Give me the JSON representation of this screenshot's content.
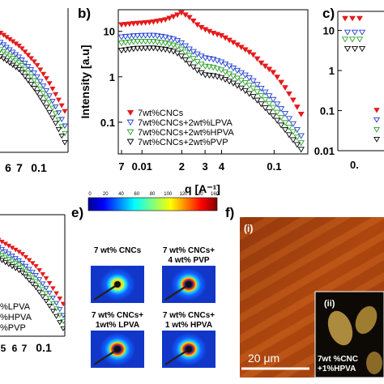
{
  "panel_labels": {
    "b": "b)",
    "c": "c)",
    "e": "e)",
    "f": "f)"
  },
  "chart_data": [
    {
      "panel": "a (cropped)",
      "type": "scatter",
      "x_ticks": [
        "6",
        "7",
        "0.1"
      ],
      "legend_fragments": [
        "%LPVA",
        "%HPVA",
        "%PVP"
      ],
      "lower_x_ticks": [
        "5",
        "6",
        "7",
        "0.1"
      ],
      "xscale": "log",
      "yscale": "log",
      "series": [
        {
          "color": "#e41a1c",
          "marker": "triangle-down-filled",
          "x": [
            0.01,
            0.03,
            0.05,
            0.07,
            0.09,
            0.11,
            0.13
          ],
          "y": [
            30,
            16,
            8,
            4,
            2,
            1,
            0.55
          ]
        },
        {
          "color": "#1f3fd1",
          "marker": "triangle-down-open",
          "x": [
            0.01,
            0.03,
            0.05,
            0.07,
            0.09,
            0.11,
            0.13
          ],
          "y": [
            22,
            11,
            5,
            2.5,
            1.2,
            0.6,
            0.3
          ]
        },
        {
          "color": "#2ca02c",
          "marker": "triangle-down-open",
          "x": [
            0.01,
            0.03,
            0.05,
            0.07,
            0.09,
            0.11,
            0.13
          ],
          "y": [
            18,
            8,
            4,
            1.8,
            0.9,
            0.45,
            0.22
          ]
        },
        {
          "color": "#000000",
          "marker": "triangle-down-open",
          "x": [
            0.01,
            0.03,
            0.05,
            0.07,
            0.09,
            0.11,
            0.13
          ],
          "y": [
            14,
            6,
            3,
            1.3,
            0.6,
            0.3,
            0.15
          ]
        }
      ]
    },
    {
      "panel": "b",
      "type": "scatter",
      "xlabel": "q [A⁻¹]",
      "ylabel": "Intensity [a.u]",
      "xscale": "log",
      "yscale": "log",
      "xlim": [
        0.007,
        0.17
      ],
      "ylim": [
        0.02,
        30
      ],
      "x_ticks": [
        {
          "v": 0.007,
          "t": "7"
        },
        {
          "v": 0.01,
          "t": "0.01"
        },
        {
          "v": 0.02,
          "t": "2"
        },
        {
          "v": 0.03,
          "t": "3"
        },
        {
          "v": 0.04,
          "t": "4"
        },
        {
          "v": 0.1,
          "t": "0.1"
        }
      ],
      "y_ticks": [
        {
          "v": 10,
          "t": "10"
        },
        {
          "v": 1,
          "t": "1"
        },
        {
          "v": 0.1,
          "t": "0.1"
        }
      ],
      "legend_position": "bottom-left",
      "series": [
        {
          "name": "7wt%CNCs",
          "color": "#e41a1c",
          "marker": "triangle-down-filled",
          "x": [
            0.007,
            0.009,
            0.012,
            0.015,
            0.018,
            0.02,
            0.023,
            0.027,
            0.03,
            0.035,
            0.04,
            0.05,
            0.06,
            0.07,
            0.08,
            0.1,
            0.12,
            0.14,
            0.16
          ],
          "y": [
            14,
            15,
            16,
            18,
            22,
            26,
            20,
            13,
            11,
            9,
            8,
            5.5,
            4,
            3,
            2,
            1.2,
            0.6,
            0.3,
            0.15
          ]
        },
        {
          "name": "7wt%CNCs+2wt%LPVA",
          "color": "#1f3fd1",
          "marker": "triangle-down-open",
          "x": [
            0.007,
            0.009,
            0.012,
            0.015,
            0.018,
            0.02,
            0.023,
            0.027,
            0.03,
            0.035,
            0.04,
            0.05,
            0.06,
            0.07,
            0.08,
            0.1,
            0.12,
            0.14,
            0.16
          ],
          "y": [
            7.5,
            8,
            8.2,
            7.5,
            6.5,
            5.5,
            4,
            3,
            2.6,
            2.4,
            2.1,
            1.5,
            1.1,
            0.8,
            0.55,
            0.3,
            0.16,
            0.09,
            0.05
          ]
        },
        {
          "name": "7wt%CNCs+2wt%HPVA",
          "color": "#2ca02c",
          "marker": "triangle-down-open",
          "x": [
            0.007,
            0.009,
            0.012,
            0.015,
            0.018,
            0.02,
            0.023,
            0.027,
            0.03,
            0.035,
            0.04,
            0.05,
            0.06,
            0.07,
            0.08,
            0.1,
            0.12,
            0.14,
            0.16
          ],
          "y": [
            5.5,
            6,
            6,
            5.5,
            4.8,
            4,
            2.9,
            2,
            1.7,
            1.6,
            1.4,
            1,
            0.75,
            0.55,
            0.38,
            0.2,
            0.1,
            0.06,
            0.035
          ]
        },
        {
          "name": "7wt%CNCs+2wt%PVP",
          "color": "#000000",
          "marker": "triangle-down-open",
          "x": [
            0.007,
            0.009,
            0.012,
            0.015,
            0.018,
            0.02,
            0.023,
            0.027,
            0.03,
            0.035,
            0.04,
            0.05,
            0.06,
            0.07,
            0.08,
            0.1,
            0.12,
            0.14,
            0.16
          ],
          "y": [
            3.8,
            4.2,
            4.3,
            4,
            3.5,
            2.8,
            1.9,
            1.3,
            1.1,
            1.05,
            0.95,
            0.7,
            0.5,
            0.36,
            0.25,
            0.13,
            0.07,
            0.04,
            0.025
          ]
        }
      ]
    },
    {
      "panel": "c (cropped)",
      "type": "scatter",
      "y_ticks": [
        "10",
        "1",
        "0.1",
        "0.01"
      ],
      "x_ticks": [
        "0."
      ],
      "xscale": "log",
      "yscale": "log",
      "series": [
        {
          "color": "#e41a1c",
          "marker": "triangle-down-filled",
          "x": [
            0.007,
            0.0075,
            0.008
          ],
          "y": [
            20,
            20,
            20
          ]
        },
        {
          "color": "#1f3fd1",
          "marker": "triangle-down-open",
          "x": [
            0.007,
            0.0075,
            0.008
          ],
          "y": [
            9,
            9,
            9
          ]
        },
        {
          "color": "#2ca02c",
          "marker": "triangle-down-open",
          "x": [
            0.007,
            0.0075,
            0.008
          ],
          "y": [
            6,
            6,
            6
          ]
        },
        {
          "color": "#000000",
          "marker": "triangle-down-open",
          "x": [
            0.007,
            0.0075,
            0.008
          ],
          "y": [
            3.5,
            3.5,
            3.5
          ]
        }
      ]
    }
  ],
  "panel_e": {
    "colorbar_ticks": [
      "0",
      "20",
      "40",
      "60",
      "80",
      "100",
      "120",
      "140",
      "160"
    ],
    "patterns": [
      {
        "label_line1": "7 wt% CNCs",
        "label_line2": ""
      },
      {
        "label_line1": "7 wt% CNCs+",
        "label_line2": "4 wt% PVP"
      },
      {
        "label_line1": "7 wt% CNCs+",
        "label_line2": "1wt% LPVA"
      },
      {
        "label_line1": "7 wt% CNCs+",
        "label_line2": "1 wt% HPVA"
      }
    ]
  },
  "panel_f": {
    "main_label": "(i)",
    "inset_label": "(ii)",
    "scale_bar": "20 μm",
    "inset_caption_line1": "7wt %CNC",
    "inset_caption_line2": "+1%HPVA"
  }
}
